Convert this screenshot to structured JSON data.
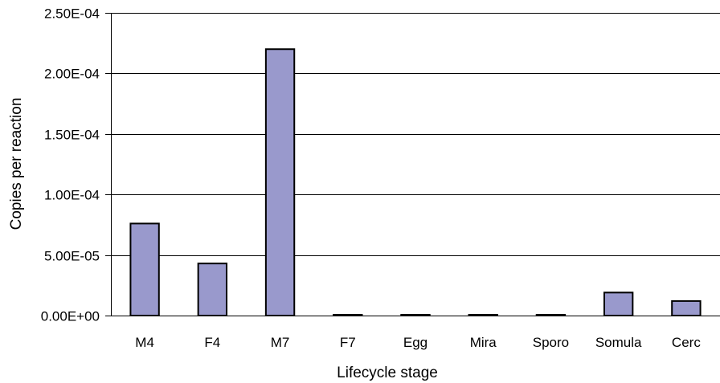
{
  "chart_data": {
    "type": "bar",
    "title": "",
    "xlabel": "Lifecycle stage",
    "ylabel": "Copies per reaction",
    "categories": [
      "M4",
      "F4",
      "M7",
      "F7",
      "Egg",
      "Mira",
      "Sporo",
      "Somula",
      "Cerc"
    ],
    "values": [
      7.6e-05,
      4.3e-05,
      0.00022,
      5e-07,
      4e-07,
      4e-07,
      6e-07,
      1.9e-05,
      1.2e-05
    ],
    "ylim": [
      0,
      0.00025
    ],
    "yticks": [
      0,
      5e-05,
      0.0001,
      0.00015,
      0.0002,
      0.00025
    ],
    "ytick_labels": [
      "0.00E+00",
      "5.00E-05",
      "1.00E-04",
      "1.50E-04",
      "2.00E-04",
      "2.50E-04"
    ],
    "grid": true,
    "bar_color": "#9999cc",
    "bar_edge_color": "#000000",
    "grid_color": "#000000"
  }
}
